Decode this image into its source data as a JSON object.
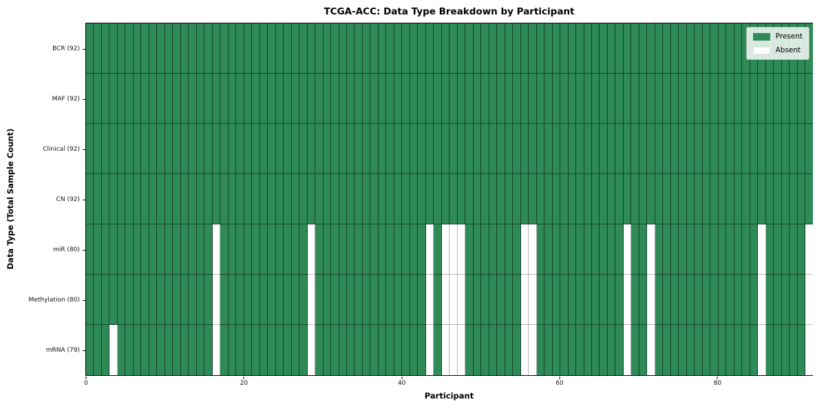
{
  "chart_data": {
    "type": "heatmap",
    "title": "TCGA-ACC: Data Type Breakdown by Participant",
    "xlabel": "Participant",
    "ylabel": "Data Type (Total Sample Count)",
    "n_participants": 92,
    "x_ticks": [
      0,
      20,
      40,
      60,
      80
    ],
    "x_range": [
      0,
      92
    ],
    "grid": "cell-edges",
    "legend_position": "upper right",
    "legend": {
      "present_label": "Present",
      "absent_label": "Absent"
    },
    "colors": {
      "present": "#2e8b57",
      "absent": "#ffffff"
    },
    "rows": [
      {
        "label": "BCR (92)",
        "data_type": "BCR",
        "present_count": 92,
        "absent_participants": []
      },
      {
        "label": "MAF (92)",
        "data_type": "MAF",
        "present_count": 92,
        "absent_participants": []
      },
      {
        "label": "Clinical (92)",
        "data_type": "Clinical",
        "present_count": 92,
        "absent_participants": []
      },
      {
        "label": "CN (92)",
        "data_type": "CN",
        "present_count": 92,
        "absent_participants": []
      },
      {
        "label": "miR (80)",
        "data_type": "miR",
        "present_count": 80,
        "absent_participants": [
          16,
          28,
          43,
          45,
          46,
          47,
          55,
          56,
          68,
          71,
          85,
          91
        ]
      },
      {
        "label": "Methylation (80)",
        "data_type": "Methylation",
        "present_count": 80,
        "absent_participants": [
          16,
          28,
          43,
          45,
          46,
          47,
          55,
          56,
          68,
          71,
          85,
          91
        ]
      },
      {
        "label": "mRNA (79)",
        "data_type": "mRNA",
        "present_count": 79,
        "absent_participants": [
          3,
          16,
          28,
          43,
          45,
          46,
          47,
          55,
          56,
          68,
          71,
          85,
          91
        ]
      }
    ]
  }
}
